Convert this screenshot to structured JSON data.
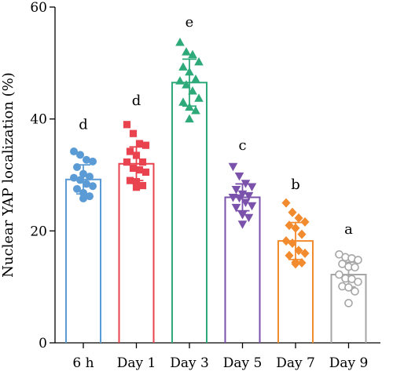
{
  "chart_data": {
    "type": "bar",
    "title": "",
    "xlabel": "",
    "ylabel": "Nuclear YAP localization (%)",
    "ylim": [
      0,
      60
    ],
    "yticks": [
      0,
      20,
      40,
      60
    ],
    "grid": false,
    "categories": [
      "6 h",
      "Day 1",
      "Day 3",
      "Day 5",
      "Day 7",
      "Day 9"
    ],
    "means": [
      29.2,
      32.0,
      46.5,
      26.0,
      18.2,
      12.2
    ],
    "error_sd": [
      2.6,
      3.0,
      4.2,
      2.4,
      3.3,
      2.2
    ],
    "significance_letters": [
      "d",
      "d",
      "e",
      "c",
      "b",
      "a"
    ],
    "letter_values": [
      38.2,
      42.5,
      56.5,
      34.5,
      27.5,
      19.5
    ],
    "colors": [
      "#5b9bd5",
      "#e8434e",
      "#2eaa7a",
      "#7b52ab",
      "#f28a2e",
      "#a6a6a6"
    ],
    "markers": [
      "circle",
      "square",
      "triangle-up",
      "triangle-down",
      "diamond",
      "circle-open"
    ],
    "points": [
      [
        34.2,
        33.6,
        32.7,
        32.4,
        31.4,
        30.2,
        29.7,
        29.5,
        29.1,
        28.4,
        28.0,
        27.5,
        26.8,
        26.2,
        25.8
      ],
      [
        39.0,
        37.4,
        35.6,
        35.3,
        34.2,
        33.5,
        32.3,
        32.3,
        31.2,
        30.9,
        30.5,
        29.0,
        28.8,
        28.1,
        27.8
      ],
      [
        53.7,
        52.0,
        51.5,
        50.2,
        49.3,
        48.4,
        47.1,
        46.8,
        46.1,
        45.0,
        43.7,
        43.0,
        42.1,
        41.5,
        40.0
      ],
      [
        31.5,
        29.8,
        28.5,
        27.9,
        27.4,
        26.6,
        26.3,
        26.0,
        25.9,
        25.1,
        24.5,
        24.2,
        22.9,
        22.4,
        21.2
      ],
      [
        25.0,
        23.3,
        22.3,
        21.6,
        21.0,
        20.5,
        19.4,
        18.2,
        17.8,
        16.5,
        16.0,
        15.6,
        14.4,
        14.3,
        14.1
      ],
      [
        15.8,
        15.3,
        15.1,
        14.8,
        14.1,
        13.6,
        13.5,
        12.2,
        11.5,
        11.4,
        10.9,
        10.1,
        9.9,
        9.2,
        7.1
      ]
    ]
  }
}
